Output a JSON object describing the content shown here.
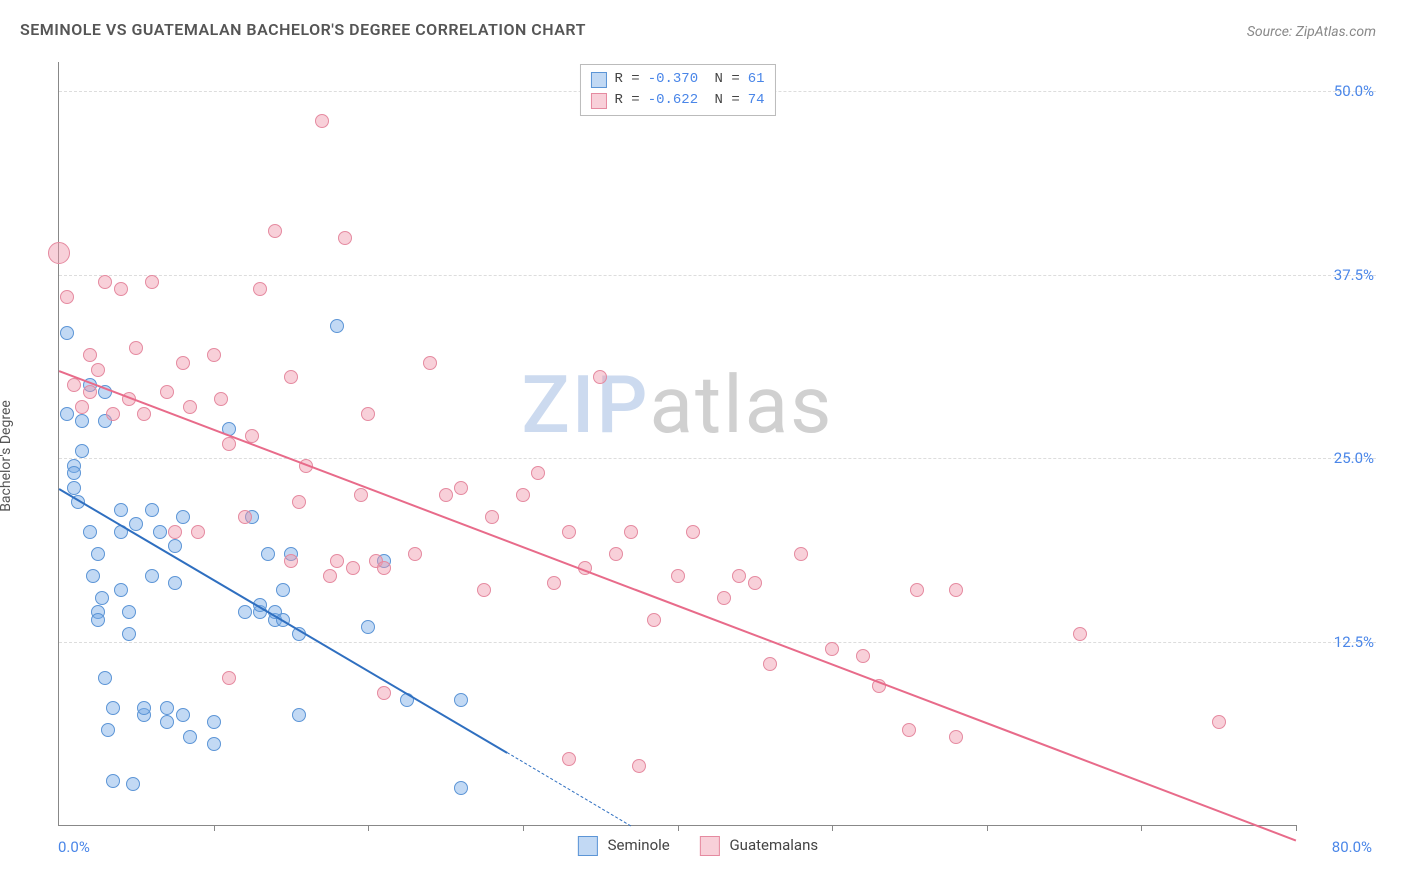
{
  "title": "SEMINOLE VS GUATEMALAN BACHELOR'S DEGREE CORRELATION CHART",
  "source": "Source: ZipAtlas.com",
  "watermark": {
    "part1": "ZIP",
    "part2": "atlas"
  },
  "chart": {
    "type": "scatter",
    "ylabel": "Bachelor's Degree",
    "xlim": [
      0,
      80
    ],
    "ylim": [
      0,
      52
    ],
    "x_end_label": "80.0%",
    "x_start_label": "0.0%",
    "yticks": [
      {
        "v": 12.5,
        "label": "12.5%"
      },
      {
        "v": 25.0,
        "label": "25.0%"
      },
      {
        "v": 37.5,
        "label": "37.5%"
      },
      {
        "v": 50.0,
        "label": "50.0%"
      }
    ],
    "xticks_minor": [
      10,
      20,
      30,
      40,
      50,
      60,
      70,
      80
    ],
    "background_color": "#ffffff",
    "grid_color": "#dddddd",
    "axis_color": "#888888",
    "tick_label_color": "#4a86e8",
    "marker_radius": 7,
    "marker_border": 1,
    "series": [
      {
        "name": "Seminole",
        "color_fill": "rgba(120,170,230,0.45)",
        "color_stroke": "#5c95d6",
        "trend": {
          "x1": 0,
          "y1": 23,
          "x2": 29,
          "y2": 5,
          "color": "#2f6fc0",
          "width": 2.2,
          "dashed_ext": {
            "x1": 29,
            "y1": 5,
            "x2": 37,
            "y2": 0
          }
        },
        "points": [
          [
            0.5,
            33.5
          ],
          [
            0.5,
            28.0
          ],
          [
            1.0,
            24.5
          ],
          [
            1.0,
            24.0
          ],
          [
            1.0,
            23.0
          ],
          [
            1.2,
            22.0
          ],
          [
            1.5,
            25.5
          ],
          [
            1.5,
            27.5
          ],
          [
            2.0,
            30.0
          ],
          [
            2.0,
            20.0
          ],
          [
            2.2,
            17.0
          ],
          [
            2.5,
            18.5
          ],
          [
            2.5,
            14.5
          ],
          [
            2.5,
            14.0
          ],
          [
            2.8,
            15.5
          ],
          [
            3.0,
            27.5
          ],
          [
            3.0,
            29.5
          ],
          [
            3.0,
            10.0
          ],
          [
            3.2,
            6.5
          ],
          [
            3.5,
            8.0
          ],
          [
            3.5,
            3.0
          ],
          [
            4.0,
            21.5
          ],
          [
            4.0,
            20.0
          ],
          [
            4.0,
            16.0
          ],
          [
            4.5,
            13.0
          ],
          [
            4.5,
            14.5
          ],
          [
            4.8,
            2.8
          ],
          [
            5.0,
            20.5
          ],
          [
            5.5,
            7.5
          ],
          [
            5.5,
            8.0
          ],
          [
            6.0,
            21.5
          ],
          [
            6.0,
            17.0
          ],
          [
            6.5,
            20.0
          ],
          [
            7.0,
            7.0
          ],
          [
            7.0,
            8.0
          ],
          [
            7.5,
            16.5
          ],
          [
            7.5,
            19.0
          ],
          [
            8.0,
            21.0
          ],
          [
            8.0,
            7.5
          ],
          [
            8.5,
            6.0
          ],
          [
            10.0,
            5.5
          ],
          [
            10.0,
            7.0
          ],
          [
            11.0,
            27.0
          ],
          [
            12.0,
            14.5
          ],
          [
            12.5,
            21.0
          ],
          [
            13.0,
            14.5
          ],
          [
            13.0,
            15.0
          ],
          [
            13.5,
            18.5
          ],
          [
            14.0,
            14.0
          ],
          [
            14.0,
            14.5
          ],
          [
            14.5,
            16.0
          ],
          [
            14.5,
            14.0
          ],
          [
            15.0,
            18.5
          ],
          [
            15.5,
            13.0
          ],
          [
            15.5,
            7.5
          ],
          [
            18.0,
            34.0
          ],
          [
            20.0,
            13.5
          ],
          [
            21.0,
            18.0
          ],
          [
            22.5,
            8.5
          ],
          [
            26.0,
            8.5
          ],
          [
            26.0,
            2.5
          ]
        ]
      },
      {
        "name": "Guatemalans",
        "color_fill": "rgba(240,150,170,0.45)",
        "color_stroke": "#e58aa0",
        "trend": {
          "x1": 0,
          "y1": 31,
          "x2": 80,
          "y2": -1,
          "color": "#e86b8a",
          "width": 2.2
        },
        "points": [
          [
            0.0,
            39.0,
            11
          ],
          [
            0.5,
            36.0
          ],
          [
            1.0,
            30.0
          ],
          [
            1.5,
            28.5
          ],
          [
            2.0,
            32.0
          ],
          [
            2.0,
            29.5
          ],
          [
            2.5,
            31.0
          ],
          [
            3.0,
            37.0
          ],
          [
            3.5,
            28.0
          ],
          [
            4.0,
            36.5
          ],
          [
            4.5,
            29.0
          ],
          [
            5.0,
            32.5
          ],
          [
            5.5,
            28.0
          ],
          [
            6.0,
            37.0
          ],
          [
            7.0,
            29.5
          ],
          [
            7.5,
            20.0
          ],
          [
            8.0,
            31.5
          ],
          [
            8.5,
            28.5
          ],
          [
            9.0,
            20.0
          ],
          [
            10.0,
            32.0
          ],
          [
            10.5,
            29.0
          ],
          [
            11.0,
            26.0
          ],
          [
            11.0,
            10.0
          ],
          [
            12.0,
            21.0
          ],
          [
            12.5,
            26.5
          ],
          [
            13.0,
            36.5
          ],
          [
            14.0,
            40.5
          ],
          [
            15.0,
            30.5
          ],
          [
            15.0,
            18.0
          ],
          [
            15.5,
            22.0
          ],
          [
            16.0,
            24.5
          ],
          [
            17.0,
            48.0
          ],
          [
            17.5,
            17.0
          ],
          [
            18.0,
            18.0
          ],
          [
            18.5,
            40.0
          ],
          [
            19.0,
            17.5
          ],
          [
            19.5,
            22.5
          ],
          [
            20.0,
            28.0
          ],
          [
            20.5,
            18.0
          ],
          [
            21.0,
            9.0
          ],
          [
            21.0,
            17.5
          ],
          [
            23.0,
            18.5
          ],
          [
            24.0,
            31.5
          ],
          [
            25.0,
            22.5
          ],
          [
            26.0,
            23.0
          ],
          [
            27.5,
            16.0
          ],
          [
            28.0,
            21.0
          ],
          [
            30.0,
            22.5
          ],
          [
            31.0,
            24.0
          ],
          [
            32.0,
            16.5
          ],
          [
            33.0,
            20.0
          ],
          [
            33.0,
            4.5
          ],
          [
            34.0,
            17.5
          ],
          [
            35.0,
            30.5
          ],
          [
            36.0,
            18.5
          ],
          [
            37.0,
            20.0
          ],
          [
            37.5,
            4.0
          ],
          [
            38.5,
            14.0
          ],
          [
            40.0,
            17.0
          ],
          [
            41.0,
            20.0
          ],
          [
            43.0,
            15.5
          ],
          [
            44.0,
            17.0
          ],
          [
            45.0,
            16.5
          ],
          [
            46.0,
            11.0
          ],
          [
            48.0,
            18.5
          ],
          [
            50.0,
            12.0
          ],
          [
            52.0,
            11.5
          ],
          [
            53.0,
            9.5
          ],
          [
            55.0,
            6.5
          ],
          [
            55.5,
            16.0
          ],
          [
            58.0,
            16.0
          ],
          [
            58.0,
            6.0
          ],
          [
            66.0,
            13.0
          ],
          [
            75.0,
            7.0
          ]
        ]
      }
    ],
    "stats": [
      {
        "swatch_fill": "rgba(120,170,230,0.45)",
        "swatch_stroke": "#5c95d6",
        "r": "-0.370",
        "n": "61"
      },
      {
        "swatch_fill": "rgba(240,150,170,0.45)",
        "swatch_stroke": "#e58aa0",
        "r": "-0.622",
        "n": "74"
      }
    ],
    "bottom_legend": [
      {
        "label": "Seminole",
        "fill": "rgba(120,170,230,0.45)",
        "stroke": "#5c95d6"
      },
      {
        "label": "Guatemalans",
        "fill": "rgba(240,150,170,0.45)",
        "stroke": "#e58aa0"
      }
    ]
  }
}
